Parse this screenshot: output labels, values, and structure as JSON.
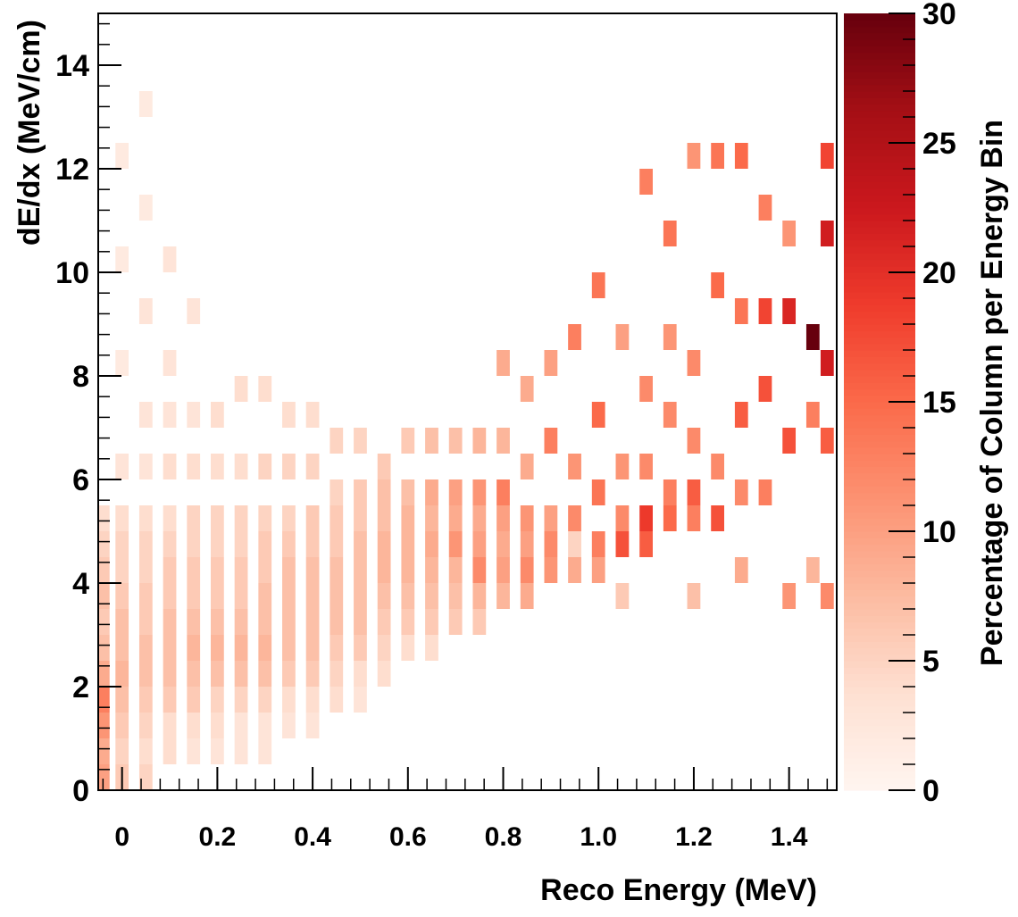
{
  "chart_data": {
    "type": "heatmap",
    "title": "",
    "xlabel": "Reco Energy (MeV)",
    "ylabel": "dE/dx (MeV/cm)",
    "colorbar_label": "Percentage of Column per Energy Bin",
    "xlim": [
      -0.05,
      1.5
    ],
    "ylim": [
      0,
      15
    ],
    "zlim": [
      0,
      30
    ],
    "x_ticks": [
      0,
      0.2,
      0.4,
      0.6,
      0.8,
      1.0,
      1.2,
      1.4
    ],
    "x_tick_labels": [
      "0",
      "0.2",
      "0.4",
      "0.6",
      "0.8",
      "1.0",
      "1.2",
      "1.4"
    ],
    "y_ticks": [
      0,
      2,
      4,
      6,
      8,
      10,
      12,
      14
    ],
    "y_tick_labels": [
      "0",
      "2",
      "4",
      "6",
      "8",
      "10",
      "12",
      "14"
    ],
    "z_ticks": [
      0,
      5,
      10,
      15,
      20,
      25,
      30
    ],
    "z_tick_labels": [
      "0",
      "5",
      "10",
      "15",
      "20",
      "25",
      "30"
    ],
    "colormap": [
      "#fff5f0",
      "#fee0d2",
      "#fcbba1",
      "#fc9272",
      "#fb6a4a",
      "#ef3b2c",
      "#cb181d",
      "#a50f15",
      "#67000d"
    ],
    "grid": false,
    "bins": {
      "x_edges": [
        -0.05,
        1.5,
        56
      ],
      "y_edges": [
        0,
        15,
        30
      ]
    },
    "cells": [
      [
        -0.04,
        0.25,
        10
      ],
      [
        -0.04,
        0.75,
        9
      ],
      [
        -0.04,
        1.25,
        11
      ],
      [
        -0.04,
        1.75,
        13
      ],
      [
        -0.04,
        2.25,
        9
      ],
      [
        -0.04,
        2.75,
        7
      ],
      [
        -0.04,
        3.25,
        6
      ],
      [
        -0.04,
        3.75,
        7
      ],
      [
        -0.04,
        4.25,
        6
      ],
      [
        -0.04,
        4.75,
        5
      ],
      [
        -0.04,
        5.25,
        4
      ],
      [
        0.0,
        0.25,
        6
      ],
      [
        0.0,
        0.75,
        5
      ],
      [
        0.0,
        1.25,
        6
      ],
      [
        0.0,
        1.75,
        7
      ],
      [
        0.0,
        2.25,
        8
      ],
      [
        0.0,
        2.75,
        7
      ],
      [
        0.0,
        3.25,
        7
      ],
      [
        0.0,
        3.75,
        6
      ],
      [
        0.0,
        4.25,
        5
      ],
      [
        0.0,
        4.75,
        5
      ],
      [
        0.0,
        5.25,
        4
      ],
      [
        0.0,
        6.25,
        3
      ],
      [
        0.0,
        8.25,
        2
      ],
      [
        0.0,
        10.25,
        2
      ],
      [
        0.0,
        12.25,
        2
      ],
      [
        0.05,
        0.25,
        5
      ],
      [
        0.05,
        0.75,
        4
      ],
      [
        0.05,
        1.25,
        5
      ],
      [
        0.05,
        1.75,
        6
      ],
      [
        0.05,
        2.25,
        7
      ],
      [
        0.05,
        2.75,
        7
      ],
      [
        0.05,
        3.25,
        6
      ],
      [
        0.05,
        3.75,
        6
      ],
      [
        0.05,
        4.25,
        5
      ],
      [
        0.05,
        4.75,
        5
      ],
      [
        0.05,
        5.25,
        4
      ],
      [
        0.05,
        6.25,
        3
      ],
      [
        0.05,
        7.25,
        3
      ],
      [
        0.05,
        9.25,
        3
      ],
      [
        0.05,
        11.25,
        2
      ],
      [
        0.05,
        13.25,
        2
      ],
      [
        0.1,
        0.75,
        4
      ],
      [
        0.1,
        1.25,
        4
      ],
      [
        0.1,
        1.75,
        6
      ],
      [
        0.1,
        2.25,
        7
      ],
      [
        0.1,
        2.75,
        7
      ],
      [
        0.1,
        3.25,
        7
      ],
      [
        0.1,
        3.75,
        6
      ],
      [
        0.1,
        4.25,
        6
      ],
      [
        0.1,
        4.75,
        5
      ],
      [
        0.1,
        5.25,
        4
      ],
      [
        0.1,
        6.25,
        4
      ],
      [
        0.1,
        7.25,
        3
      ],
      [
        0.1,
        8.25,
        3
      ],
      [
        0.1,
        10.25,
        3
      ],
      [
        0.15,
        0.75,
        3
      ],
      [
        0.15,
        1.25,
        4
      ],
      [
        0.15,
        1.75,
        6
      ],
      [
        0.15,
        2.25,
        7
      ],
      [
        0.15,
        2.75,
        8
      ],
      [
        0.15,
        3.25,
        7
      ],
      [
        0.15,
        3.75,
        6
      ],
      [
        0.15,
        4.25,
        6
      ],
      [
        0.15,
        4.75,
        5
      ],
      [
        0.15,
        5.25,
        5
      ],
      [
        0.15,
        6.25,
        4
      ],
      [
        0.15,
        7.25,
        3
      ],
      [
        0.15,
        9.25,
        3
      ],
      [
        0.2,
        0.75,
        3
      ],
      [
        0.2,
        1.25,
        4
      ],
      [
        0.2,
        1.75,
        5
      ],
      [
        0.2,
        2.25,
        7
      ],
      [
        0.2,
        2.75,
        8
      ],
      [
        0.2,
        3.25,
        7
      ],
      [
        0.2,
        3.75,
        6
      ],
      [
        0.2,
        4.25,
        6
      ],
      [
        0.2,
        4.75,
        5
      ],
      [
        0.2,
        5.25,
        5
      ],
      [
        0.2,
        6.25,
        4
      ],
      [
        0.2,
        7.25,
        4
      ],
      [
        0.25,
        0.75,
        3
      ],
      [
        0.25,
        1.25,
        3
      ],
      [
        0.25,
        1.75,
        5
      ],
      [
        0.25,
        2.25,
        7
      ],
      [
        0.25,
        2.75,
        8
      ],
      [
        0.25,
        3.25,
        7
      ],
      [
        0.25,
        3.75,
        6
      ],
      [
        0.25,
        4.25,
        6
      ],
      [
        0.25,
        4.75,
        5
      ],
      [
        0.25,
        5.25,
        5
      ],
      [
        0.25,
        6.25,
        4
      ],
      [
        0.25,
        7.75,
        4
      ],
      [
        0.3,
        0.75,
        3
      ],
      [
        0.3,
        1.25,
        3
      ],
      [
        0.3,
        1.75,
        5
      ],
      [
        0.3,
        2.25,
        7
      ],
      [
        0.3,
        2.75,
        8
      ],
      [
        0.3,
        3.25,
        7
      ],
      [
        0.3,
        3.75,
        7
      ],
      [
        0.3,
        4.25,
        6
      ],
      [
        0.3,
        4.75,
        6
      ],
      [
        0.3,
        5.25,
        5
      ],
      [
        0.3,
        6.25,
        5
      ],
      [
        0.3,
        7.75,
        4
      ],
      [
        0.35,
        1.25,
        3
      ],
      [
        0.35,
        1.75,
        4
      ],
      [
        0.35,
        2.25,
        6
      ],
      [
        0.35,
        2.75,
        7
      ],
      [
        0.35,
        3.25,
        7
      ],
      [
        0.35,
        3.75,
        7
      ],
      [
        0.35,
        4.25,
        7
      ],
      [
        0.35,
        4.75,
        6
      ],
      [
        0.35,
        5.25,
        5
      ],
      [
        0.35,
        6.25,
        5
      ],
      [
        0.35,
        7.25,
        4
      ],
      [
        0.4,
        1.25,
        3
      ],
      [
        0.4,
        1.75,
        4
      ],
      [
        0.4,
        2.25,
        6
      ],
      [
        0.4,
        2.75,
        7
      ],
      [
        0.4,
        3.25,
        7
      ],
      [
        0.4,
        3.75,
        7
      ],
      [
        0.4,
        4.25,
        7
      ],
      [
        0.4,
        4.75,
        6
      ],
      [
        0.4,
        5.25,
        6
      ],
      [
        0.4,
        6.25,
        5
      ],
      [
        0.4,
        7.25,
        4
      ],
      [
        0.45,
        1.75,
        4
      ],
      [
        0.45,
        2.25,
        5
      ],
      [
        0.45,
        2.75,
        6
      ],
      [
        0.45,
        3.25,
        7
      ],
      [
        0.45,
        3.75,
        7
      ],
      [
        0.45,
        4.25,
        7
      ],
      [
        0.45,
        4.75,
        6
      ],
      [
        0.45,
        5.25,
        6
      ],
      [
        0.45,
        5.75,
        5
      ],
      [
        0.45,
        6.75,
        5
      ],
      [
        0.5,
        1.75,
        3
      ],
      [
        0.5,
        2.25,
        4
      ],
      [
        0.5,
        2.75,
        6
      ],
      [
        0.5,
        3.25,
        7
      ],
      [
        0.5,
        3.75,
        7
      ],
      [
        0.5,
        4.25,
        7
      ],
      [
        0.5,
        4.75,
        7
      ],
      [
        0.5,
        5.25,
        6
      ],
      [
        0.5,
        5.75,
        6
      ],
      [
        0.5,
        6.75,
        5
      ],
      [
        0.55,
        2.25,
        4
      ],
      [
        0.55,
        2.75,
        5
      ],
      [
        0.55,
        3.25,
        6
      ],
      [
        0.55,
        3.75,
        7
      ],
      [
        0.55,
        4.25,
        8
      ],
      [
        0.55,
        4.75,
        8
      ],
      [
        0.55,
        5.25,
        7
      ],
      [
        0.55,
        5.75,
        7
      ],
      [
        0.55,
        6.25,
        6
      ],
      [
        0.6,
        2.75,
        4
      ],
      [
        0.6,
        3.25,
        6
      ],
      [
        0.6,
        3.75,
        7
      ],
      [
        0.6,
        4.25,
        8
      ],
      [
        0.6,
        4.75,
        8
      ],
      [
        0.6,
        5.25,
        8
      ],
      [
        0.6,
        5.75,
        7
      ],
      [
        0.6,
        6.75,
        6
      ],
      [
        0.65,
        2.75,
        4
      ],
      [
        0.65,
        3.25,
        6
      ],
      [
        0.65,
        3.75,
        7
      ],
      [
        0.65,
        4.25,
        8
      ],
      [
        0.65,
        4.75,
        9
      ],
      [
        0.65,
        5.25,
        8
      ],
      [
        0.65,
        5.75,
        9
      ],
      [
        0.65,
        6.75,
        7
      ],
      [
        0.7,
        3.25,
        6
      ],
      [
        0.7,
        3.75,
        7
      ],
      [
        0.7,
        4.25,
        8
      ],
      [
        0.7,
        4.75,
        11
      ],
      [
        0.7,
        5.25,
        9
      ],
      [
        0.7,
        5.75,
        10
      ],
      [
        0.7,
        6.75,
        7
      ],
      [
        0.75,
        3.25,
        6
      ],
      [
        0.75,
        3.75,
        8
      ],
      [
        0.75,
        4.25,
        12
      ],
      [
        0.75,
        4.75,
        10
      ],
      [
        0.75,
        5.25,
        9
      ],
      [
        0.75,
        5.75,
        11
      ],
      [
        0.75,
        6.75,
        8
      ],
      [
        0.8,
        3.75,
        8
      ],
      [
        0.8,
        4.25,
        10
      ],
      [
        0.8,
        4.75,
        9
      ],
      [
        0.8,
        5.25,
        10
      ],
      [
        0.8,
        5.75,
        13
      ],
      [
        0.8,
        6.75,
        8
      ],
      [
        0.8,
        8.25,
        9
      ],
      [
        0.85,
        3.75,
        9
      ],
      [
        0.85,
        4.25,
        12
      ],
      [
        0.85,
        4.75,
        10
      ],
      [
        0.85,
        5.25,
        11
      ],
      [
        0.85,
        6.25,
        9
      ],
      [
        0.85,
        7.75,
        9
      ],
      [
        0.9,
        4.25,
        11
      ],
      [
        0.9,
        4.75,
        12
      ],
      [
        0.9,
        5.25,
        10
      ],
      [
        0.9,
        6.75,
        13
      ],
      [
        0.9,
        8.25,
        10
      ],
      [
        0.95,
        4.25,
        9
      ],
      [
        0.95,
        4.75,
        5
      ],
      [
        0.95,
        5.25,
        12
      ],
      [
        0.95,
        6.25,
        11
      ],
      [
        0.95,
        8.75,
        13
      ],
      [
        1.0,
        4.25,
        10
      ],
      [
        1.0,
        4.75,
        13
      ],
      [
        1.0,
        5.75,
        14
      ],
      [
        1.0,
        7.25,
        15
      ],
      [
        1.0,
        9.75,
        14
      ],
      [
        1.05,
        3.75,
        6
      ],
      [
        1.05,
        4.75,
        17
      ],
      [
        1.05,
        5.25,
        12
      ],
      [
        1.05,
        6.25,
        11
      ],
      [
        1.05,
        8.75,
        10
      ],
      [
        1.1,
        4.75,
        16
      ],
      [
        1.1,
        5.25,
        19
      ],
      [
        1.1,
        6.25,
        12
      ],
      [
        1.1,
        7.75,
        12
      ],
      [
        1.1,
        11.75,
        13
      ],
      [
        1.15,
        5.25,
        15
      ],
      [
        1.15,
        5.75,
        13
      ],
      [
        1.15,
        7.25,
        12
      ],
      [
        1.15,
        8.75,
        11
      ],
      [
        1.15,
        10.75,
        14
      ],
      [
        1.2,
        3.75,
        7
      ],
      [
        1.2,
        5.25,
        13
      ],
      [
        1.2,
        5.75,
        16
      ],
      [
        1.2,
        6.75,
        12
      ],
      [
        1.2,
        8.25,
        12
      ],
      [
        1.2,
        12.25,
        11
      ],
      [
        1.25,
        5.25,
        17
      ],
      [
        1.25,
        6.25,
        12
      ],
      [
        1.25,
        9.75,
        15
      ],
      [
        1.25,
        12.25,
        14
      ],
      [
        1.3,
        4.25,
        9
      ],
      [
        1.3,
        5.75,
        12
      ],
      [
        1.3,
        7.25,
        16
      ],
      [
        1.3,
        9.25,
        14
      ],
      [
        1.3,
        12.25,
        15
      ],
      [
        1.35,
        5.75,
        13
      ],
      [
        1.35,
        7.75,
        17
      ],
      [
        1.35,
        9.25,
        18
      ],
      [
        1.35,
        11.25,
        13
      ],
      [
        1.4,
        3.75,
        11
      ],
      [
        1.4,
        6.75,
        17
      ],
      [
        1.4,
        9.25,
        21
      ],
      [
        1.4,
        10.75,
        11
      ],
      [
        1.45,
        4.25,
        8
      ],
      [
        1.45,
        8.75,
        30
      ],
      [
        1.45,
        7.25,
        13
      ],
      [
        1.48,
        3.75,
        12
      ],
      [
        1.48,
        6.75,
        16
      ],
      [
        1.48,
        8.25,
        22
      ],
      [
        1.48,
        10.75,
        22
      ],
      [
        1.48,
        12.25,
        18
      ]
    ]
  }
}
